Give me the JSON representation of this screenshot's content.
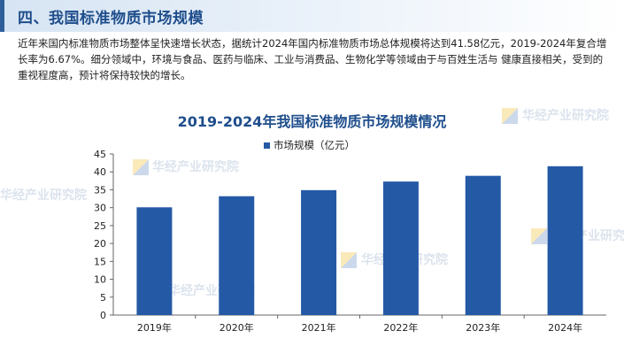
{
  "section": {
    "title": "四、我国标准物质市场规模"
  },
  "intro_text": "近年来国内标准物质市场整体呈快速增长状态，据统计2024年国内标准物质市场总体规模将达到41.58亿元，2019-2024年复合增长率为6.67%。细分领域中，环境与食品、医药与临床、工业与消费品、生物化学等领域由于与百姓生活与 健康直接相关，受到的重视程度高，预计将保持较快的增长。",
  "watermark_text": "华经产业研究院",
  "colors": {
    "bar": "#2459a6",
    "title": "#1f4e8c",
    "axis": "#666666"
  },
  "chart_data": {
    "type": "bar",
    "title": "2019-2024年我国标准物质市场规模情况",
    "categories": [
      "2019年",
      "2020年",
      "2021年",
      "2022年",
      "2023年",
      "2024年"
    ],
    "series": [
      {
        "name": "市场规模（亿元）",
        "values": [
          30.1,
          33.2,
          34.9,
          37.3,
          38.9,
          41.58
        ]
      }
    ],
    "ylim": [
      0,
      45
    ],
    "yticks": [
      0,
      5,
      10,
      15,
      20,
      25,
      30,
      35,
      40,
      45
    ],
    "xlabel": "",
    "ylabel": "",
    "legend_position": "top-center",
    "grid": false
  }
}
